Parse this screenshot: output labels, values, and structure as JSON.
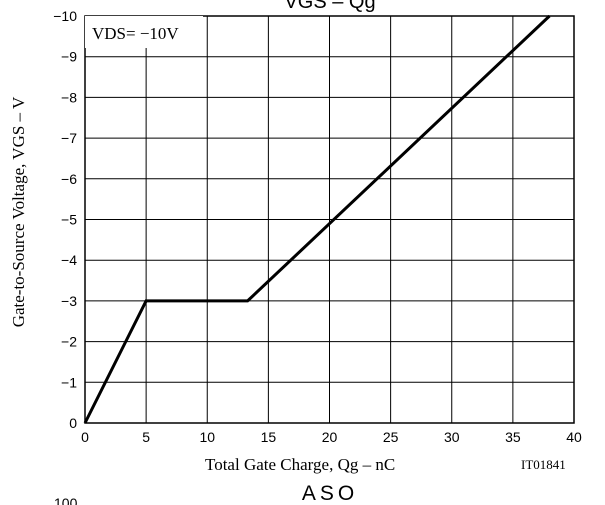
{
  "chart_data": {
    "type": "line",
    "title": "VGS – Qg",
    "section_label": "ASO",
    "partial_tick": "100",
    "xlabel": "Total Gate Charge, Qg  –  nC",
    "ylabel": "Gate-to-Source Voltage, VGS  –  V",
    "annotation": "VDS= −10V",
    "figure_id": "IT01841",
    "xlim": [
      0,
      40
    ],
    "ylim": [
      0,
      -10
    ],
    "x_ticks": [
      0,
      5,
      10,
      15,
      20,
      25,
      30,
      35,
      40
    ],
    "y_ticks": [
      "0",
      "−1",
      "−2",
      "−3",
      "−4",
      "−5",
      "−6",
      "−7",
      "−8",
      "−9",
      "−10"
    ],
    "grid": true,
    "series": [
      {
        "x": [
          0,
          5,
          13.3,
          38
        ],
        "y": [
          0,
          -3,
          -3,
          -10
        ]
      }
    ]
  }
}
